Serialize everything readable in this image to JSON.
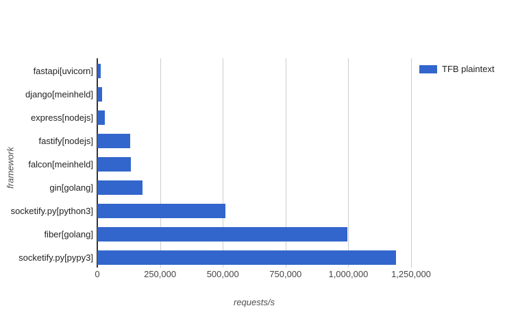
{
  "chart": {
    "legend": {
      "label": "TFB plaintext",
      "swatch_color": "#3366cc"
    },
    "colors": {
      "bar": "#3366cc",
      "gridline": "#cccccc",
      "axis_line": "#333333",
      "category_text": "#222222",
      "tick_text": "#444444",
      "axis_title_text": "#4d4d4d",
      "background": "#ffffff"
    }
  },
  "chart_data": {
    "type": "bar",
    "orientation": "horizontal",
    "title": "",
    "xlabel": "requests/s",
    "ylabel": "framework",
    "xlim": [
      0,
      1250000
    ],
    "grid": true,
    "legend_position": "top-right",
    "categories": [
      "fastapi[uvicorn]",
      "django[meinheld]",
      "express[nodejs]",
      "fastify[nodejs]",
      "falcon[meinheld]",
      "gin[golang]",
      "socketify.py[python3]",
      "fiber[golang]",
      "socketify.py[pypy3]"
    ],
    "series": [
      {
        "name": "TFB plaintext",
        "color": "#3366cc",
        "values": [
          15000,
          19500,
          29000,
          131000,
          133000,
          180000,
          510000,
          995000,
          1190000
        ]
      }
    ],
    "x_ticks": {
      "values": [
        0,
        250000,
        500000,
        750000,
        1000000,
        1250000
      ],
      "labels": [
        "0",
        "250,000",
        "500,000",
        "750,000",
        "1,000,000",
        "1,250,000"
      ]
    }
  }
}
